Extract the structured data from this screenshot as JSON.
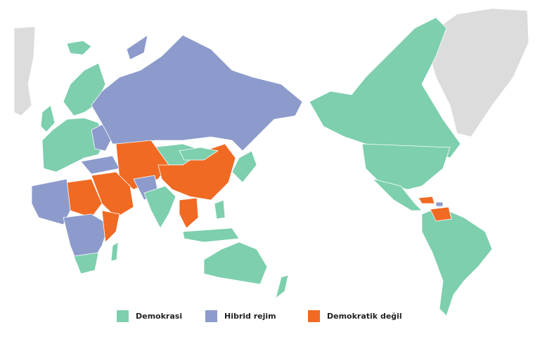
{
  "legend": {
    "items": [
      {
        "label": "Demokrasi",
        "color": "#7dcfae"
      },
      {
        "label": "Hibrid rejim",
        "color": "#8c9bcb"
      },
      {
        "label": "Demokratik değil",
        "color": "#f06a23"
      }
    ]
  },
  "colors": {
    "no_data": "#dcdcdc",
    "background": "#ffffff"
  }
}
